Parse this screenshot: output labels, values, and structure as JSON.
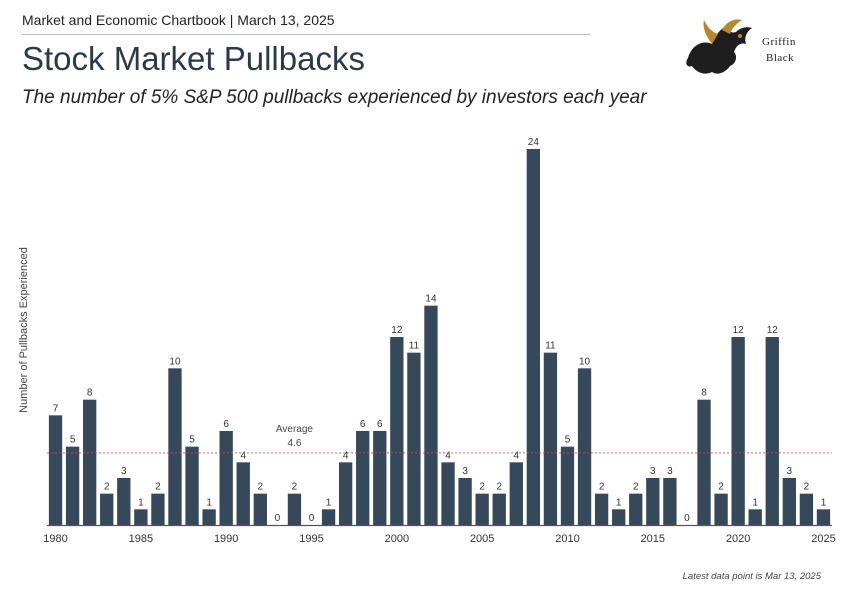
{
  "header": {
    "source_line": "Market and Economic Chartbook | March 13, 2025",
    "title": "Stock Market Pullbacks",
    "subtitle": "The number of 5% S&P 500 pullbacks experienced by investors each year"
  },
  "logo": {
    "line1": "Griffin",
    "line2": "Black"
  },
  "footnote": "Latest data point is Mar 13, 2025",
  "colors": {
    "bar": "#36495a",
    "average_line": "#c0504d",
    "axis": "#555555"
  },
  "chart_data": {
    "type": "bar",
    "title": "Stock Market Pullbacks",
    "ylabel": "Number of Pullbacks Experienced",
    "xlabel": "",
    "categories": [
      1980,
      1981,
      1982,
      1983,
      1984,
      1985,
      1986,
      1987,
      1988,
      1989,
      1990,
      1991,
      1992,
      1993,
      1994,
      1995,
      1996,
      1997,
      1998,
      1999,
      2000,
      2001,
      2002,
      2003,
      2004,
      2005,
      2006,
      2007,
      2008,
      2009,
      2010,
      2011,
      2012,
      2013,
      2014,
      2015,
      2016,
      2017,
      2018,
      2019,
      2020,
      2021,
      2022,
      2023,
      2024,
      2025
    ],
    "values": [
      7,
      5,
      8,
      2,
      3,
      1,
      2,
      10,
      5,
      1,
      6,
      4,
      2,
      0,
      2,
      0,
      1,
      4,
      6,
      6,
      12,
      11,
      14,
      4,
      3,
      2,
      2,
      4,
      24,
      11,
      5,
      10,
      2,
      1,
      2,
      3,
      3,
      0,
      8,
      2,
      12,
      1,
      12,
      3,
      2,
      1
    ],
    "x_tick_labels": [
      "1980",
      "1985",
      "1990",
      "1995",
      "2000",
      "2005",
      "2010",
      "2015",
      "2020",
      "2025"
    ],
    "average": {
      "label": "Average",
      "value": 4.6,
      "value_label": "4.6"
    },
    "ylim": [
      0,
      24
    ],
    "grid": false,
    "data_labels": true
  }
}
